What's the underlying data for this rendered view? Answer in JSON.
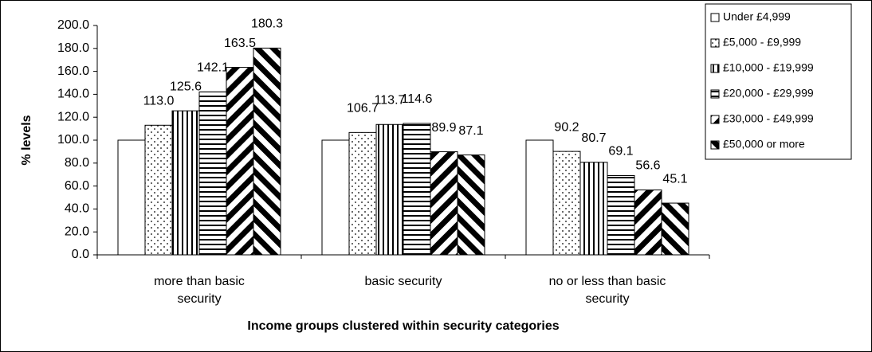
{
  "chart_data": {
    "type": "bar",
    "y_label": "% levels",
    "x_label": "Income groups clustered within security categories",
    "categories": [
      "more than basic security",
      "basic security",
      "no or less than basic security"
    ],
    "series": [
      {
        "name": "Under £4,999",
        "color": "#000000",
        "pattern": "solid",
        "values": [
          100,
          100,
          100
        ]
      },
      {
        "name": "£5,000 - £9,999",
        "color": "#000000",
        "pattern": "dots",
        "values": [
          113.0,
          106.7,
          90.2
        ],
        "value_labels": [
          "113.0",
          "106.7",
          "90.2"
        ]
      },
      {
        "name": "£10,000 - £19,999",
        "color": "#000000",
        "pattern": "vertical",
        "values": [
          125.6,
          113.7,
          80.7
        ]
      },
      {
        "name": "£20,000 - £29,999",
        "color": "#000000",
        "pattern": "horizontal",
        "values": [
          142.1,
          114.6,
          69.1
        ]
      },
      {
        "name": "£30,000 - £49,999",
        "color": "#000000",
        "pattern": "diagonal-down",
        "values": [
          163.5,
          89.9,
          56.6
        ]
      },
      {
        "name": "£50,000 or more",
        "color": "#000000",
        "pattern": "diagonal-up",
        "values": [
          180.3,
          87.1,
          45.1
        ]
      }
    ],
    "ylim": [
      0,
      200
    ],
    "yticks": [
      {
        "value": 0,
        "label": "0.0"
      },
      {
        "value": 20,
        "label": "20.0"
      },
      {
        "value": 40,
        "label": "40.0"
      },
      {
        "value": 60,
        "label": "60.0"
      },
      {
        "value": 80,
        "label": "80.0"
      },
      {
        "value": 100,
        "label": "100.0"
      },
      {
        "value": 120,
        "label": "120.0"
      },
      {
        "value": 140,
        "label": "140.0"
      },
      {
        "value": 160,
        "label": "160.0"
      },
      {
        "value": 180,
        "label": "180.0"
      },
      {
        "value": 200,
        "label": "200.0"
      }
    ],
    "grid": false,
    "legend": "right"
  }
}
